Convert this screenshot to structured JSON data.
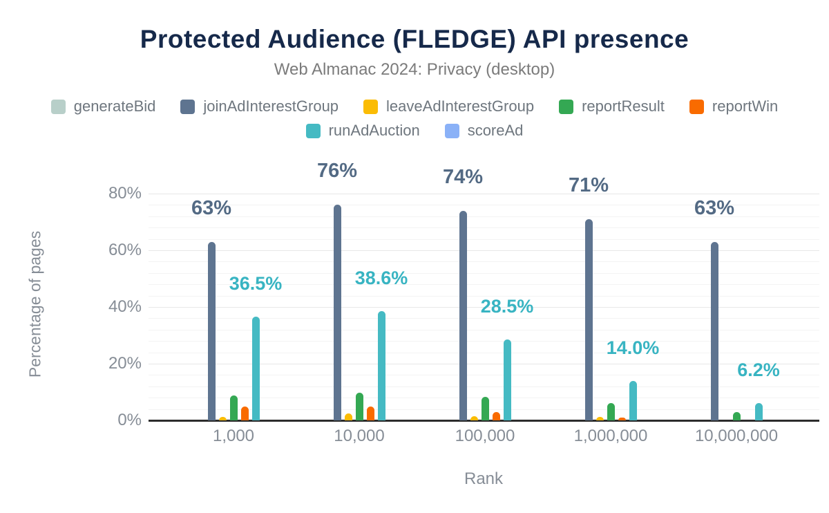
{
  "chart_data": {
    "type": "bar",
    "title": "Protected Audience (FLEDGE) API presence",
    "subtitle": "Web Almanac 2024: Privacy (desktop)",
    "xlabel": "Rank",
    "ylabel": "Percentage of pages",
    "legend_position": "top",
    "grid": {
      "major_step_pct": 20,
      "minor_step_pct": 4,
      "on": true
    },
    "ylim": [
      0,
      80
    ],
    "ytick_labels": [
      "0%",
      "20%",
      "40%",
      "60%",
      "80%"
    ],
    "categories": [
      "1,000",
      "10,000",
      "100,000",
      "1,000,000",
      "10,000,000"
    ],
    "series": [
      {
        "name": "generateBid",
        "color": "#b8cfc9",
        "values": [
          0,
          0,
          0,
          0,
          0
        ]
      },
      {
        "name": "joinAdInterestGroup",
        "color": "#5e7490",
        "label_color": "#536a84",
        "values": [
          63,
          76,
          74,
          71,
          63
        ],
        "data_labels": [
          "63%",
          "76%",
          "74%",
          "71%",
          "63%"
        ]
      },
      {
        "name": "leaveAdInterestGroup",
        "color": "#fbbc04",
        "values": [
          1.2,
          2.4,
          1.5,
          1.2,
          0
        ]
      },
      {
        "name": "reportResult",
        "color": "#34a853",
        "values": [
          8.7,
          9.7,
          8.2,
          6.1,
          2.9
        ]
      },
      {
        "name": "reportWin",
        "color": "#f96b00",
        "values": [
          4.9,
          4.9,
          2.9,
          1.0,
          0
        ]
      },
      {
        "name": "runAdAuction",
        "color": "#45bac3",
        "label_color": "#38b4c2",
        "values": [
          36.5,
          38.6,
          28.5,
          14.0,
          6.2
        ],
        "data_labels": [
          "36.5%",
          "38.6%",
          "28.5%",
          "14.0%",
          "6.2%"
        ]
      },
      {
        "name": "scoreAd",
        "color": "#8ab1f7",
        "values": [
          0,
          0,
          0,
          0,
          0
        ]
      }
    ]
  }
}
